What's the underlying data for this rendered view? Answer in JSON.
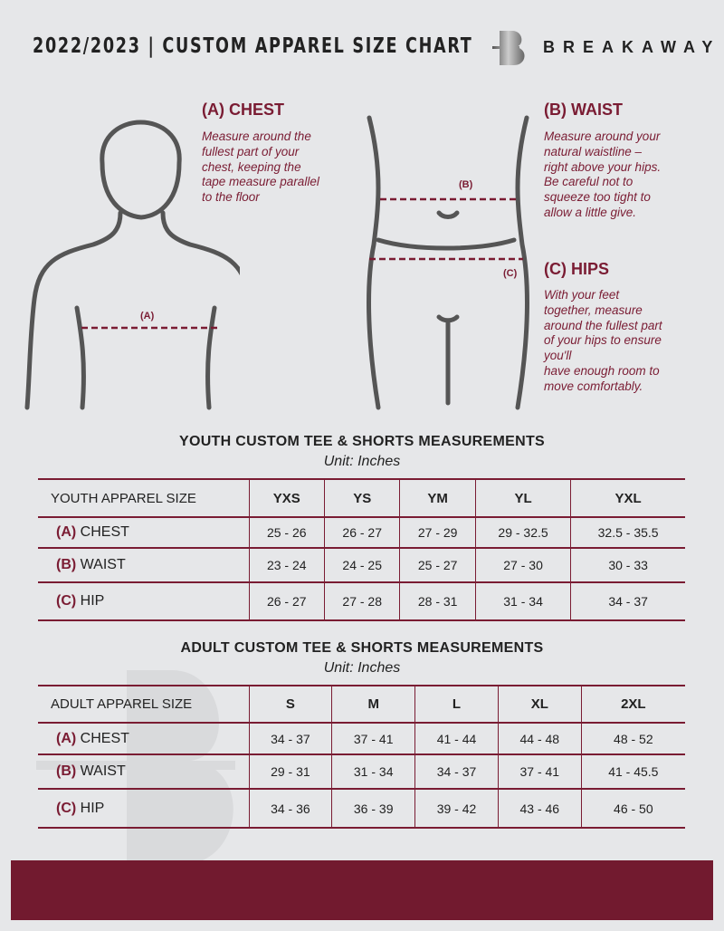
{
  "header": {
    "title": "2022/2023 | CUSTOM APPAREL SIZE CHART",
    "brand": "BREAKAWAY"
  },
  "chest": {
    "title": "(A) CHEST",
    "lines": [
      "Measure around the",
      "fullest part of your",
      "chest, keeping the",
      "tape measure parallel",
      "to the floor"
    ],
    "marker": "(A)"
  },
  "waist": {
    "title": "(B) WAIST",
    "lines": [
      "Measure around your",
      "natural waistline –",
      "right above your hips.",
      "Be careful not to",
      "squeeze too tight to",
      "allow a little give."
    ],
    "marker": "(B)"
  },
  "hips": {
    "title": "(C) HIPS",
    "lines": [
      "With your feet",
      "together, measure",
      "around the fullest part",
      "of your hips to ensure",
      "you'll",
      "have enough room to",
      "move comfortably."
    ],
    "marker": "(C)"
  },
  "youth": {
    "title": "YOUTH CUSTOM TEE & SHORTS MEASUREMENTS",
    "unit": "Unit: Inches",
    "header": "YOUTH APPAREL SIZE",
    "sizes": [
      "YXS",
      "YS",
      "YM",
      "YL",
      "YXL"
    ],
    "rows": [
      {
        "code": "(A)",
        "name": "CHEST",
        "values": [
          "25 - 26",
          "26 - 27",
          "27 - 29",
          "29 - 32.5",
          "32.5 - 35.5"
        ]
      },
      {
        "code": "(B)",
        "name": "WAIST",
        "values": [
          "23 - 24",
          "24 - 25",
          "25 - 27",
          "27 - 30",
          "30 - 33"
        ]
      },
      {
        "code": "(C)",
        "name": "HIP",
        "values": [
          "26 - 27",
          "27 - 28",
          "28 - 31",
          "31 - 34",
          "34 - 37"
        ]
      }
    ]
  },
  "adult": {
    "title": "ADULT CUSTOM TEE & SHORTS MEASUREMENTS",
    "unit": "Unit: Inches",
    "header": "ADULT APPAREL SIZE",
    "sizes": [
      "S",
      "M",
      "L",
      "XL",
      "2XL"
    ],
    "rows": [
      {
        "code": "(A)",
        "name": "CHEST",
        "values": [
          "34 - 37",
          "37 - 41",
          "41 - 44",
          "44 - 48",
          "48 - 52"
        ]
      },
      {
        "code": "(B)",
        "name": "WAIST",
        "values": [
          "29 - 31",
          "31 - 34",
          "34 - 37",
          "37 - 41",
          "41 - 45.5"
        ]
      },
      {
        "code": "(C)",
        "name": "HIP",
        "values": [
          "34 - 36",
          "36 - 39",
          "39 - 42",
          "43 - 46",
          "46 - 50"
        ]
      }
    ]
  },
  "colors": {
    "accent": "#7a1c33",
    "bar": "#721a2f",
    "background": "#e6e7e9"
  }
}
